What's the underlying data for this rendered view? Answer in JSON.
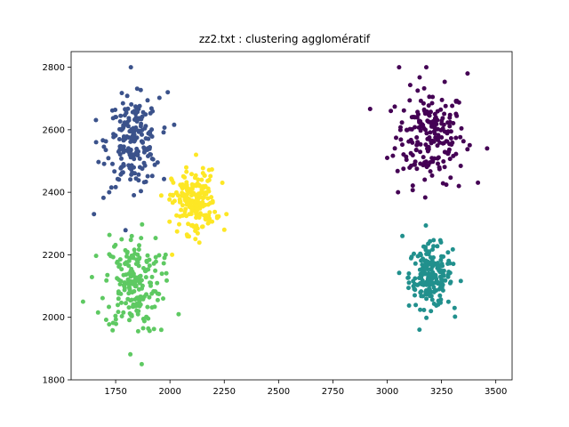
{
  "chart_data": {
    "type": "scatter",
    "title": "zz2.txt : clustering agglomératif",
    "xlabel": "",
    "ylabel": "",
    "xlim": [
      1545,
      3575
    ],
    "ylim": [
      1800,
      2850
    ],
    "xticks": [
      1750,
      2000,
      2250,
      2500,
      2750,
      3000,
      3250,
      3500
    ],
    "yticks": [
      1800,
      2000,
      2200,
      2400,
      2600,
      2800
    ],
    "grid": false,
    "legend": "none",
    "marker_radius": 2.5,
    "series": [
      {
        "color": "#440154",
        "center": [
          3200,
          2580
        ],
        "spread": [
          80,
          75
        ],
        "count": 200,
        "outliers": [
          [
            3055,
            2800
          ],
          [
            3180,
            2800
          ],
          [
            3370,
            2780
          ],
          [
            3460,
            2540
          ],
          [
            3000,
            2510
          ],
          [
            3330,
            2420
          ],
          [
            3050,
            2400
          ]
        ]
      },
      {
        "color": "#21908d",
        "center": [
          3200,
          2130
        ],
        "spread": [
          50,
          50
        ],
        "count": 200,
        "outliers": [
          [
            3070,
            2260
          ],
          [
            3310,
            2030
          ],
          [
            3100,
            2140
          ]
        ]
      },
      {
        "color": "#3b528b",
        "center": [
          1830,
          2560
        ],
        "spread": [
          60,
          70
        ],
        "count": 200,
        "outliers": [
          [
            1820,
            2800
          ],
          [
            1990,
            2720
          ],
          [
            1650,
            2330
          ],
          [
            1660,
            2560
          ],
          [
            1720,
            2400
          ]
        ]
      },
      {
        "color": "#5ec962",
        "center": [
          1830,
          2110
        ],
        "spread": [
          65,
          80
        ],
        "count": 200,
        "outliers": [
          [
            1600,
            2050
          ],
          [
            1870,
            1850
          ],
          [
            1960,
            1960
          ],
          [
            2040,
            2010
          ],
          [
            1980,
            2200
          ]
        ]
      },
      {
        "color": "#fde725",
        "center": [
          2110,
          2370
        ],
        "spread": [
          50,
          50
        ],
        "count": 200,
        "outliers": [
          [
            2250,
            2280
          ],
          [
            2010,
            2200
          ],
          [
            2120,
            2520
          ],
          [
            2260,
            2330
          ]
        ]
      }
    ]
  }
}
